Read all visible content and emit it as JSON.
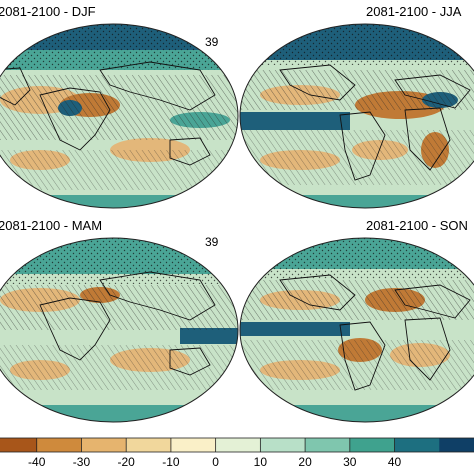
{
  "panels": [
    {
      "title": "2081-2100 - DJF",
      "model_count": "39"
    },
    {
      "title": "2081-2100 - JJA",
      "model_count": ""
    },
    {
      "title": "2081-2100 - MAM",
      "model_count": "39"
    },
    {
      "title": "2081-2100 - SON",
      "model_count": ""
    }
  ],
  "colorbar": {
    "tick_labels": [
      "-40",
      "-30",
      "-20",
      "-10",
      "0",
      "10",
      "20",
      "30",
      "40"
    ],
    "colors": [
      "#a8561a",
      "#cf8a3c",
      "#e6b46e",
      "#f1d79c",
      "#faf0c8",
      "#e4f1d6",
      "#b8e0c8",
      "#7fc6ae",
      "#3fa28e",
      "#1d6f80",
      "#0f3f66"
    ]
  },
  "map_colors": {
    "ocean_neutral": "#c8e3c8",
    "wet": "#4aa596",
    "wet_strong": "#1e5f7a",
    "dry": "#e3b77a",
    "dry_strong": "#c07a36",
    "coastline": "#111111"
  }
}
